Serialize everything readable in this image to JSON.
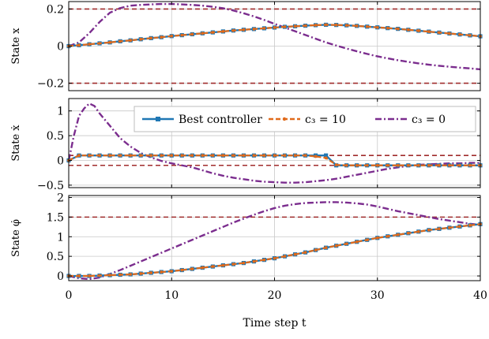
{
  "chart_data": [
    {
      "type": "line",
      "ylabel": "State x",
      "ylim": [
        -0.24,
        0.24
      ],
      "yticks": [
        -0.2,
        0,
        0.2
      ],
      "ytick_labels": [
        "−0.2",
        "0",
        "0.2"
      ],
      "xlim": [
        0,
        40
      ],
      "grid": true,
      "bounds": [
        0.2,
        -0.2
      ],
      "bound_color": "#a02c2c",
      "series": [
        {
          "name": "Best controller",
          "color": "#1f77b4",
          "x": [
            0,
            1,
            2,
            3,
            4,
            5,
            6,
            7,
            8,
            9,
            10,
            11,
            12,
            13,
            14,
            15,
            16,
            17,
            18,
            19,
            20,
            21,
            22,
            23,
            24,
            25,
            26,
            27,
            28,
            29,
            30,
            31,
            32,
            33,
            34,
            35,
            36,
            37,
            38,
            39,
            40
          ],
          "y": [
            0.0,
            0.005,
            0.01,
            0.015,
            0.02,
            0.026,
            0.031,
            0.037,
            0.043,
            0.048,
            0.054,
            0.059,
            0.064,
            0.069,
            0.074,
            0.079,
            0.084,
            0.088,
            0.092,
            0.096,
            0.1,
            0.104,
            0.107,
            0.11,
            0.113,
            0.115,
            0.114,
            0.112,
            0.109,
            0.105,
            0.101,
            0.097,
            0.093,
            0.088,
            0.083,
            0.078,
            0.073,
            0.068,
            0.063,
            0.058,
            0.053
          ]
        },
        {
          "name": "c3 = 10",
          "color": "#e06a1b",
          "x": [
            0,
            1,
            2,
            3,
            4,
            5,
            6,
            7,
            8,
            9,
            10,
            11,
            12,
            13,
            14,
            15,
            16,
            17,
            18,
            19,
            20,
            21,
            22,
            23,
            24,
            25,
            26,
            27,
            28,
            29,
            30,
            31,
            32,
            33,
            34,
            35,
            36,
            37,
            38,
            39,
            40
          ],
          "y": [
            0.0,
            0.005,
            0.01,
            0.015,
            0.02,
            0.026,
            0.031,
            0.037,
            0.043,
            0.048,
            0.054,
            0.059,
            0.064,
            0.069,
            0.074,
            0.079,
            0.084,
            0.088,
            0.092,
            0.096,
            0.1,
            0.104,
            0.107,
            0.11,
            0.113,
            0.115,
            0.114,
            0.112,
            0.109,
            0.105,
            0.101,
            0.097,
            0.093,
            0.088,
            0.083,
            0.078,
            0.073,
            0.068,
            0.063,
            0.058,
            0.053
          ]
        },
        {
          "name": "c3 = 0",
          "color": "#7b2d8e",
          "x": [
            0,
            1,
            2,
            3,
            4,
            5,
            6,
            7,
            8,
            9,
            10,
            11,
            12,
            13,
            14,
            15,
            16,
            17,
            18,
            19,
            20,
            21,
            22,
            23,
            24,
            25,
            26,
            27,
            28,
            29,
            30,
            31,
            32,
            33,
            34,
            35,
            36,
            37,
            38,
            39,
            40
          ],
          "y": [
            0.0,
            0.02,
            0.07,
            0.13,
            0.18,
            0.205,
            0.218,
            0.222,
            0.225,
            0.227,
            0.227,
            0.225,
            0.222,
            0.218,
            0.212,
            0.204,
            0.192,
            0.177,
            0.16,
            0.141,
            0.12,
            0.1,
            0.08,
            0.06,
            0.04,
            0.02,
            0.003,
            -0.013,
            -0.028,
            -0.042,
            -0.055,
            -0.066,
            -0.076,
            -0.085,
            -0.093,
            -0.1,
            -0.106,
            -0.111,
            -0.116,
            -0.12,
            -0.125
          ]
        }
      ]
    },
    {
      "type": "line",
      "ylabel": "State ẋ",
      "ylim": [
        -0.55,
        1.25
      ],
      "yticks": [
        -0.5,
        0,
        0.5,
        1
      ],
      "ytick_labels": [
        "−0.5",
        "0",
        "0.5",
        "1"
      ],
      "xlim": [
        0,
        40
      ],
      "grid": true,
      "bounds": [
        0.1,
        -0.1
      ],
      "bound_color": "#a02c2c",
      "legend": "top-right",
      "series": [
        {
          "name": "Best controller",
          "color": "#1f77b4",
          "x": [
            0,
            1,
            2,
            3,
            4,
            5,
            6,
            7,
            8,
            9,
            10,
            11,
            12,
            13,
            14,
            15,
            16,
            17,
            18,
            19,
            20,
            21,
            22,
            23,
            24,
            25,
            26,
            27,
            28,
            29,
            30,
            31,
            32,
            33,
            34,
            35,
            36,
            37,
            38,
            39,
            40
          ],
          "y": [
            0.0,
            0.1,
            0.1,
            0.1,
            0.1,
            0.1,
            0.1,
            0.1,
            0.1,
            0.1,
            0.1,
            0.1,
            0.1,
            0.1,
            0.1,
            0.1,
            0.1,
            0.1,
            0.1,
            0.1,
            0.1,
            0.1,
            0.1,
            0.1,
            0.1,
            0.1,
            -0.1,
            -0.1,
            -0.1,
            -0.1,
            -0.1,
            -0.1,
            -0.1,
            -0.1,
            -0.1,
            -0.1,
            -0.1,
            -0.1,
            -0.1,
            -0.1,
            -0.1
          ]
        },
        {
          "name": "c3 = 10",
          "color": "#e06a1b",
          "x": [
            0,
            1,
            2,
            3,
            4,
            5,
            6,
            7,
            8,
            9,
            10,
            11,
            12,
            13,
            14,
            15,
            16,
            17,
            18,
            19,
            20,
            21,
            22,
            23,
            24,
            25,
            26,
            27,
            28,
            29,
            30,
            31,
            32,
            33,
            34,
            35,
            36,
            37,
            38,
            39,
            40
          ],
          "y": [
            0.0,
            0.1,
            0.1,
            0.1,
            0.1,
            0.1,
            0.1,
            0.1,
            0.1,
            0.1,
            0.1,
            0.1,
            0.1,
            0.1,
            0.1,
            0.1,
            0.1,
            0.1,
            0.1,
            0.1,
            0.1,
            0.1,
            0.1,
            0.1,
            0.08,
            0.05,
            -0.09,
            -0.1,
            -0.1,
            -0.1,
            -0.1,
            -0.1,
            -0.1,
            -0.1,
            -0.1,
            -0.1,
            -0.1,
            -0.1,
            -0.1,
            -0.1,
            -0.1
          ]
        },
        {
          "name": "c3 = 0",
          "color": "#7b2d8e",
          "x": [
            0,
            0.5,
            1,
            1.5,
            2,
            2.5,
            3,
            4,
            5,
            6,
            7,
            8,
            9,
            10,
            11,
            12,
            13,
            14,
            15,
            16,
            17,
            18,
            19,
            20,
            21,
            22,
            23,
            24,
            25,
            26,
            27,
            28,
            29,
            30,
            31,
            32,
            33,
            34,
            35,
            36,
            37,
            38,
            39,
            40
          ],
          "y": [
            0.0,
            0.5,
            0.9,
            1.05,
            1.15,
            1.1,
            0.95,
            0.7,
            0.45,
            0.28,
            0.15,
            0.06,
            -0.01,
            -0.06,
            -0.1,
            -0.14,
            -0.2,
            -0.26,
            -0.31,
            -0.35,
            -0.38,
            -0.41,
            -0.43,
            -0.44,
            -0.45,
            -0.45,
            -0.44,
            -0.42,
            -0.4,
            -0.37,
            -0.33,
            -0.29,
            -0.25,
            -0.21,
            -0.17,
            -0.14,
            -0.11,
            -0.09,
            -0.08,
            -0.07,
            -0.06,
            -0.06,
            -0.05,
            -0.05
          ]
        }
      ]
    },
    {
      "type": "line",
      "ylabel": "State φ̇",
      "ylim": [
        -0.12,
        2.05
      ],
      "yticks": [
        0,
        0.5,
        1,
        1.5,
        2
      ],
      "ytick_labels": [
        "0",
        "0.5",
        "1",
        "1.5",
        "2"
      ],
      "xlim": [
        0,
        40
      ],
      "xticks": [
        0,
        10,
        20,
        30,
        40
      ],
      "xtick_labels": [
        "0",
        "10",
        "20",
        "30",
        "40"
      ],
      "xlabel": "Time step t",
      "grid": true,
      "bounds": [
        1.5
      ],
      "bound_color": "#a02c2c",
      "series": [
        {
          "name": "Best controller",
          "color": "#1f77b4",
          "x": [
            0,
            1,
            2,
            3,
            4,
            5,
            6,
            7,
            8,
            9,
            10,
            11,
            12,
            13,
            14,
            15,
            16,
            17,
            18,
            19,
            20,
            21,
            22,
            23,
            24,
            25,
            26,
            27,
            28,
            29,
            30,
            31,
            32,
            33,
            34,
            35,
            36,
            37,
            38,
            39,
            40
          ],
          "y": [
            0.0,
            0.0,
            0.0,
            0.01,
            0.02,
            0.03,
            0.04,
            0.06,
            0.08,
            0.1,
            0.12,
            0.15,
            0.18,
            0.21,
            0.24,
            0.27,
            0.3,
            0.33,
            0.37,
            0.41,
            0.45,
            0.5,
            0.55,
            0.6,
            0.66,
            0.72,
            0.77,
            0.82,
            0.87,
            0.92,
            0.97,
            1.01,
            1.05,
            1.09,
            1.13,
            1.17,
            1.2,
            1.23,
            1.26,
            1.29,
            1.32
          ]
        },
        {
          "name": "c3 = 10",
          "color": "#e06a1b",
          "x": [
            0,
            1,
            2,
            3,
            4,
            5,
            6,
            7,
            8,
            9,
            10,
            11,
            12,
            13,
            14,
            15,
            16,
            17,
            18,
            19,
            20,
            21,
            22,
            23,
            24,
            25,
            26,
            27,
            28,
            29,
            30,
            31,
            32,
            33,
            34,
            35,
            36,
            37,
            38,
            39,
            40
          ],
          "y": [
            0.0,
            0.0,
            0.0,
            0.01,
            0.02,
            0.03,
            0.04,
            0.06,
            0.08,
            0.1,
            0.12,
            0.15,
            0.18,
            0.21,
            0.24,
            0.27,
            0.3,
            0.33,
            0.37,
            0.41,
            0.45,
            0.5,
            0.55,
            0.6,
            0.66,
            0.72,
            0.77,
            0.82,
            0.87,
            0.92,
            0.97,
            1.01,
            1.05,
            1.09,
            1.13,
            1.17,
            1.2,
            1.23,
            1.26,
            1.29,
            1.32
          ]
        },
        {
          "name": "c3 = 0",
          "color": "#7b2d8e",
          "x": [
            0,
            1,
            2,
            3,
            4,
            5,
            6,
            7,
            8,
            9,
            10,
            11,
            12,
            13,
            14,
            15,
            16,
            17,
            18,
            19,
            20,
            21,
            22,
            23,
            24,
            25,
            26,
            27,
            28,
            29,
            30,
            31,
            32,
            33,
            34,
            35,
            36,
            37,
            38,
            39,
            40
          ],
          "y": [
            0.0,
            -0.06,
            -0.08,
            -0.04,
            0.05,
            0.15,
            0.26,
            0.37,
            0.48,
            0.59,
            0.7,
            0.81,
            0.92,
            1.03,
            1.14,
            1.25,
            1.36,
            1.46,
            1.56,
            1.65,
            1.73,
            1.79,
            1.83,
            1.86,
            1.87,
            1.88,
            1.88,
            1.87,
            1.85,
            1.82,
            1.77,
            1.71,
            1.65,
            1.6,
            1.55,
            1.5,
            1.45,
            1.41,
            1.37,
            1.33,
            1.3
          ]
        }
      ]
    }
  ],
  "legend": {
    "entries": [
      {
        "label": "Best controller",
        "color": "#1f77b4",
        "style": "solid-square"
      },
      {
        "label": "c₃ = 10",
        "color": "#e06a1b",
        "style": "dashed-dot"
      },
      {
        "label": "c₃ = 0",
        "color": "#7b2d8e",
        "style": "dashdot"
      }
    ]
  }
}
